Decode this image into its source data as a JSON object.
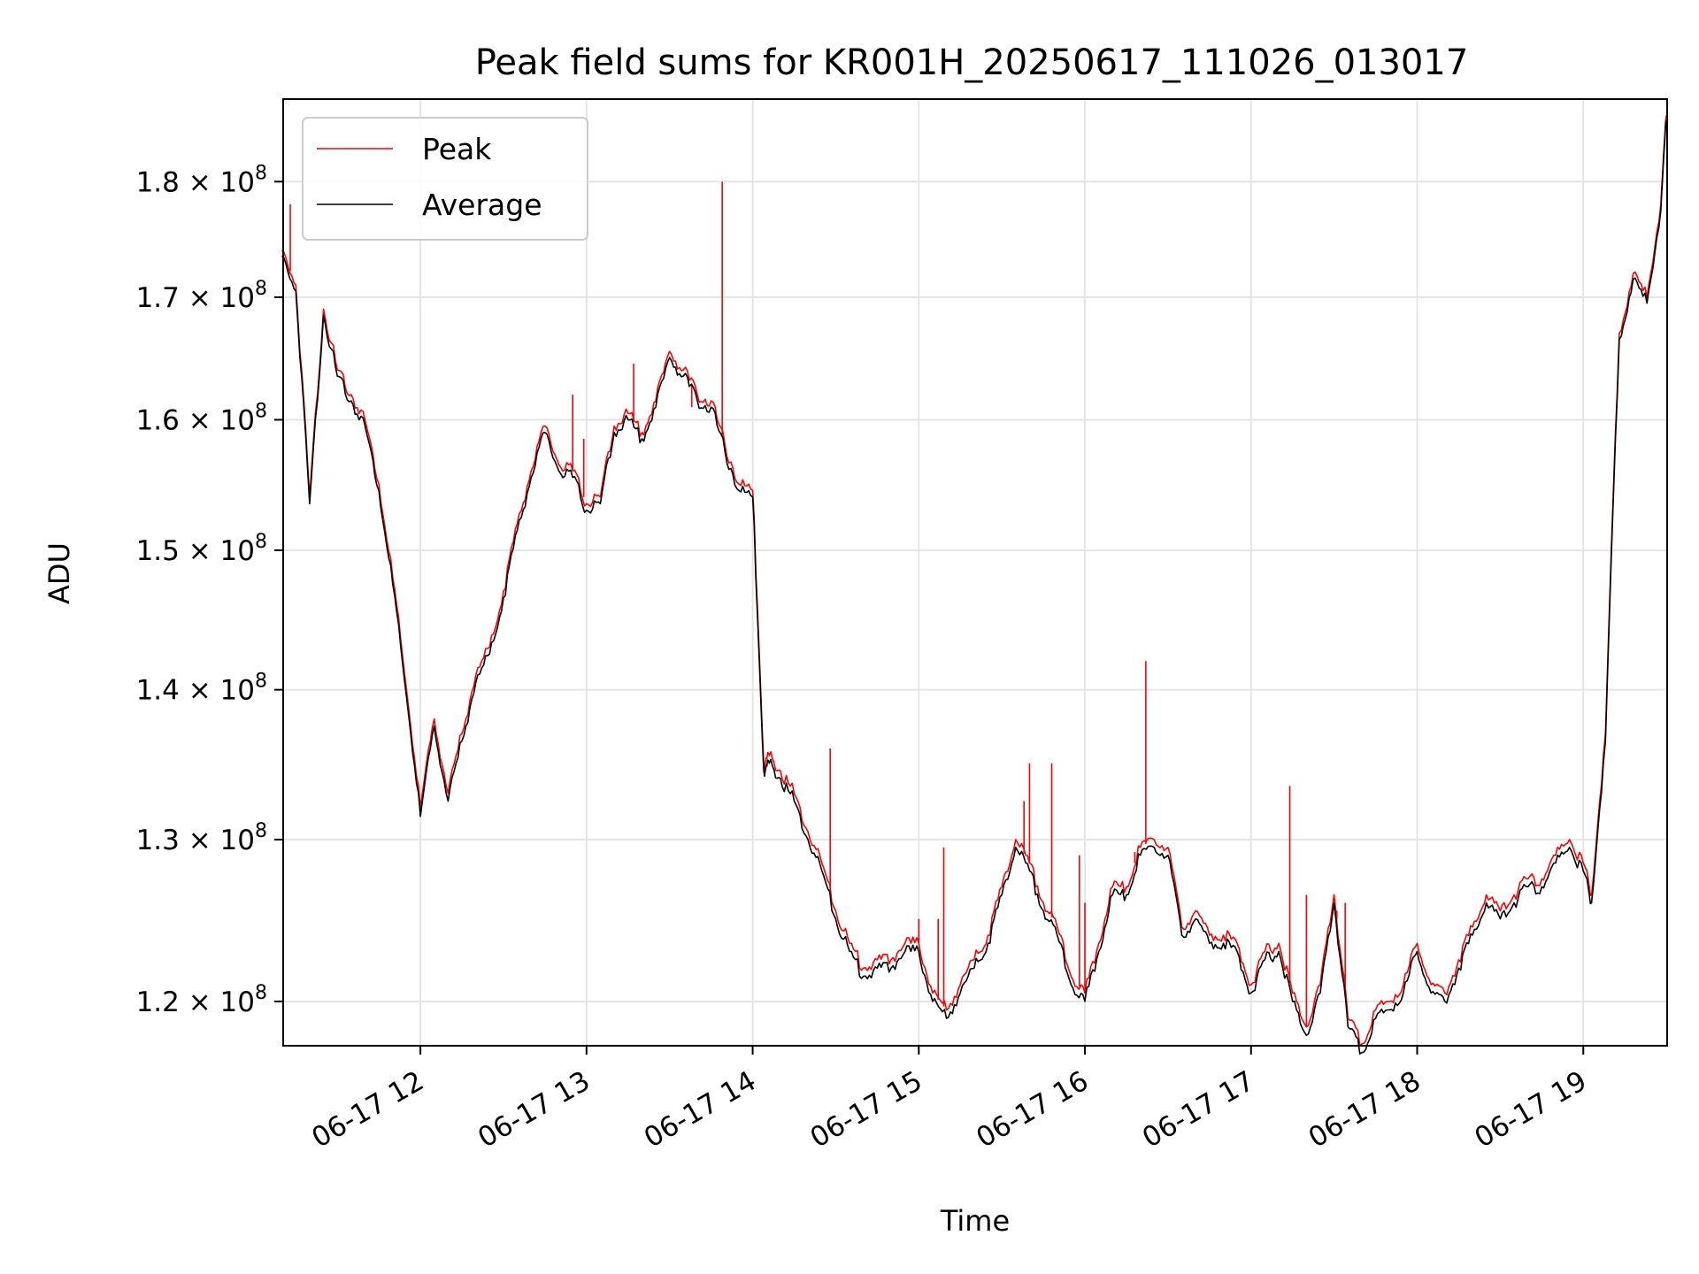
{
  "chart_data": {
    "type": "line",
    "title": "Peak field sums for KR001H_20250617_111026_013017",
    "xlabel": "Time",
    "ylabel": "ADU",
    "y_scale": "log",
    "xlim": [
      "2025-06-17 11:10:26",
      "2025-06-17 19:30:17"
    ],
    "ylim": [
      117400000,
      187500000
    ],
    "grid": true,
    "legend_position": "upper-left",
    "x_ticks": [
      {
        "value": "2025-06-17 12:00",
        "label": "06-17 12"
      },
      {
        "value": "2025-06-17 13:00",
        "label": "06-17 13"
      },
      {
        "value": "2025-06-17 14:00",
        "label": "06-17 14"
      },
      {
        "value": "2025-06-17 15:00",
        "label": "06-17 15"
      },
      {
        "value": "2025-06-17 16:00",
        "label": "06-17 16"
      },
      {
        "value": "2025-06-17 17:00",
        "label": "06-17 17"
      },
      {
        "value": "2025-06-17 18:00",
        "label": "06-17 18"
      },
      {
        "value": "2025-06-17 19:00",
        "label": "06-17 19"
      }
    ],
    "y_ticks": [
      {
        "value": 120000000,
        "mantissa": "1.2",
        "base": "10",
        "exponent": "8"
      },
      {
        "value": 130000000,
        "mantissa": "1.3",
        "base": "10",
        "exponent": "8"
      },
      {
        "value": 140000000,
        "mantissa": "1.4",
        "base": "10",
        "exponent": "8"
      },
      {
        "value": 150000000,
        "mantissa": "1.5",
        "base": "10",
        "exponent": "8"
      },
      {
        "value": 160000000,
        "mantissa": "1.6",
        "base": "10",
        "exponent": "8"
      },
      {
        "value": 170000000,
        "mantissa": "1.7",
        "base": "10",
        "exponent": "8"
      },
      {
        "value": 180000000,
        "mantissa": "1.8",
        "base": "10",
        "exponent": "8"
      }
    ],
    "x": [
      "11:10",
      "11:15",
      "11:20",
      "11:25",
      "11:30",
      "11:35",
      "11:40",
      "11:45",
      "11:50",
      "11:55",
      "12:00",
      "12:05",
      "12:10",
      "12:15",
      "12:20",
      "12:25",
      "12:30",
      "12:35",
      "12:40",
      "12:45",
      "12:50",
      "12:55",
      "13:00",
      "13:05",
      "13:10",
      "13:15",
      "13:20",
      "13:25",
      "13:30",
      "13:35",
      "13:40",
      "13:45",
      "13:50",
      "13:55",
      "14:00",
      "14:04",
      "14:06",
      "14:10",
      "14:15",
      "14:20",
      "14:25",
      "14:30",
      "14:35",
      "14:40",
      "14:45",
      "14:50",
      "14:55",
      "15:00",
      "15:05",
      "15:10",
      "15:15",
      "15:20",
      "15:25",
      "15:30",
      "15:35",
      "15:40",
      "15:45",
      "15:50",
      "15:55",
      "16:00",
      "16:05",
      "16:10",
      "16:15",
      "16:20",
      "16:25",
      "16:30",
      "16:35",
      "16:40",
      "16:45",
      "16:50",
      "16:55",
      "17:00",
      "17:05",
      "17:10",
      "17:15",
      "17:20",
      "17:25",
      "17:30",
      "17:35",
      "17:40",
      "17:45",
      "17:50",
      "17:55",
      "18:00",
      "18:05",
      "18:10",
      "18:15",
      "18:20",
      "18:25",
      "18:30",
      "18:35",
      "18:40",
      "18:45",
      "18:50",
      "18:55",
      "19:00",
      "19:03",
      "19:08",
      "19:13",
      "19:18",
      "19:23",
      "19:28",
      "19:30"
    ],
    "series": [
      {
        "name": "Peak",
        "color": "#ff0000",
        "values": [
          174000000,
          171000000,
          154000000,
          169000000,
          164000000,
          162000000,
          160000000,
          155000000,
          148000000,
          140000000,
          132000000,
          138000000,
          133000000,
          137000000,
          141000000,
          143000000,
          147000000,
          152000000,
          156000000,
          159500000,
          156500000,
          156000000,
          153500000,
          154000000,
          159500000,
          160500000,
          159000000,
          161500000,
          165500000,
          164000000,
          162000000,
          161500000,
          158000000,
          155000000,
          154500000,
          135000000,
          135500000,
          134500000,
          133000000,
          130500000,
          128500000,
          125500000,
          123500000,
          122000000,
          122500000,
          122500000,
          123500000,
          123500000,
          120500000,
          119500000,
          121000000,
          122500000,
          124000000,
          127000000,
          130000000,
          128500000,
          126000000,
          124500000,
          121500000,
          120500000,
          123500000,
          127000000,
          127000000,
          129500000,
          130000000,
          129500000,
          124500000,
          125500000,
          124000000,
          124000000,
          123500000,
          121000000,
          123000000,
          123500000,
          120500000,
          118500000,
          121000000,
          126500000,
          119000000,
          117500000,
          119500000,
          120000000,
          121000000,
          123500000,
          121000000,
          120500000,
          122500000,
          124500000,
          126500000,
          125500000,
          126500000,
          127500000,
          127500000,
          129000000,
          130000000,
          128500000,
          126500000,
          137000000,
          167000000,
          172000000,
          170000000,
          178000000,
          186000000
        ],
        "spikes": [
          {
            "x": "11:13",
            "value": 178000000
          },
          {
            "x": "12:55",
            "value": 162000000
          },
          {
            "x": "12:59",
            "value": 158500000
          },
          {
            "x": "13:17",
            "value": 164500000
          },
          {
            "x": "13:38",
            "value": 161000000
          },
          {
            "x": "13:49",
            "value": 180000000
          },
          {
            "x": "14:28",
            "value": 136000000
          },
          {
            "x": "15:00",
            "value": 125000000
          },
          {
            "x": "15:07",
            "value": 125000000
          },
          {
            "x": "15:09",
            "value": 129500000
          },
          {
            "x": "15:38",
            "value": 132500000
          },
          {
            "x": "15:40",
            "value": 135000000
          },
          {
            "x": "15:48",
            "value": 135000000
          },
          {
            "x": "15:58",
            "value": 129000000
          },
          {
            "x": "16:00",
            "value": 126000000
          },
          {
            "x": "16:18",
            "value": 129200000
          },
          {
            "x": "16:22",
            "value": 142000000
          },
          {
            "x": "17:14",
            "value": 133500000
          },
          {
            "x": "17:20",
            "value": 126500000
          },
          {
            "x": "17:31",
            "value": 125500000
          },
          {
            "x": "17:34",
            "value": 126000000
          }
        ]
      },
      {
        "name": "Average",
        "color": "#000000",
        "values": [
          173500000,
          170500000,
          153500000,
          168500000,
          163500000,
          161500000,
          159500000,
          154500000,
          147500000,
          139500000,
          131500000,
          137500000,
          132500000,
          136500000,
          140500000,
          142500000,
          146500000,
          151500000,
          155500000,
          159000000,
          156000000,
          155500000,
          153000000,
          153500000,
          159000000,
          160000000,
          158500000,
          161000000,
          165000000,
          163500000,
          161500000,
          161000000,
          157500000,
          154500000,
          154000000,
          134500000,
          135000000,
          134000000,
          132500000,
          130000000,
          128000000,
          125000000,
          123000000,
          121500000,
          122000000,
          122000000,
          123000000,
          123000000,
          120000000,
          119000000,
          120500000,
          122000000,
          123500000,
          126500000,
          129500000,
          128000000,
          125500000,
          124000000,
          121000000,
          120000000,
          123000000,
          126500000,
          126500000,
          129000000,
          129500000,
          129000000,
          124000000,
          125000000,
          123500000,
          123500000,
          123000000,
          120500000,
          122500000,
          123000000,
          120000000,
          118000000,
          120500000,
          126000000,
          118500000,
          117000000,
          119000000,
          119500000,
          120500000,
          123000000,
          120500000,
          120000000,
          122000000,
          124000000,
          126000000,
          125000000,
          126000000,
          127000000,
          127000000,
          128500000,
          129500000,
          128000000,
          126000000,
          136500000,
          166500000,
          171500000,
          169500000,
          177500000,
          185500000
        ]
      }
    ]
  }
}
